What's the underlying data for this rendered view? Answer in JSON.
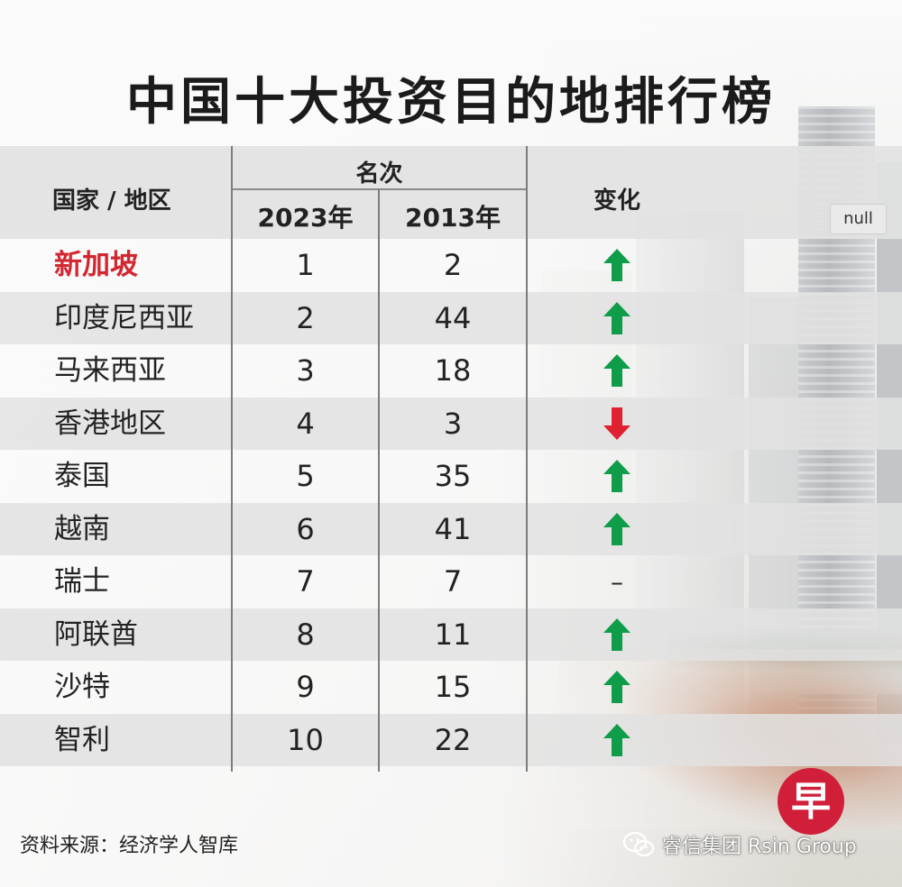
{
  "title": "中国十大投资目的地排行榜",
  "headers": {
    "region": "国家 / 地区",
    "rank": "名次",
    "year_2023": "2023年",
    "year_2013": "2013年",
    "change": "变化",
    "null_tag": "null"
  },
  "colors": {
    "up": "#0f9d4a",
    "down": "#e0212f",
    "highlight": "#d22630",
    "logo": "#d11f3a"
  },
  "rows": [
    {
      "name": "新加坡",
      "rank_2023": "1",
      "rank_2013": "2",
      "change": "up",
      "highlight": true
    },
    {
      "name": "印度尼西亚",
      "rank_2023": "2",
      "rank_2013": "44",
      "change": "up"
    },
    {
      "name": "马来西亚",
      "rank_2023": "3",
      "rank_2013": "18",
      "change": "up"
    },
    {
      "name": "香港地区",
      "rank_2023": "4",
      "rank_2013": "3",
      "change": "down"
    },
    {
      "name": "泰国",
      "rank_2023": "5",
      "rank_2013": "35",
      "change": "up"
    },
    {
      "name": "越南",
      "rank_2023": "6",
      "rank_2013": "41",
      "change": "up"
    },
    {
      "name": "瑞士",
      "rank_2023": "7",
      "rank_2013": "7",
      "change": "same",
      "change_text": "–"
    },
    {
      "name": "阿联酋",
      "rank_2023": "8",
      "rank_2013": "11",
      "change": "up"
    },
    {
      "name": "沙特",
      "rank_2023": "9",
      "rank_2013": "15",
      "change": "up"
    },
    {
      "name": "智利",
      "rank_2023": "10",
      "rank_2013": "22",
      "change": "up"
    }
  ],
  "chart_data": {
    "type": "table",
    "title": "中国十大投资目的地排行榜",
    "columns": [
      "国家 / 地区",
      "2023年",
      "2013年",
      "变化"
    ],
    "rows": [
      [
        "新加坡",
        1,
        2,
        "up"
      ],
      [
        "印度尼西亚",
        2,
        44,
        "up"
      ],
      [
        "马来西亚",
        3,
        18,
        "up"
      ],
      [
        "香港地区",
        4,
        3,
        "down"
      ],
      [
        "泰国",
        5,
        35,
        "up"
      ],
      [
        "越南",
        6,
        41,
        "up"
      ],
      [
        "瑞士",
        7,
        7,
        "same"
      ],
      [
        "阿联酋",
        8,
        11,
        "up"
      ],
      [
        "沙特",
        9,
        15,
        "up"
      ],
      [
        "智利",
        10,
        22,
        "up"
      ]
    ]
  },
  "footer": {
    "source": "资料来源：经济学人智库",
    "logo_char": "早",
    "watermark": "睿信集团 Rsin Group"
  }
}
